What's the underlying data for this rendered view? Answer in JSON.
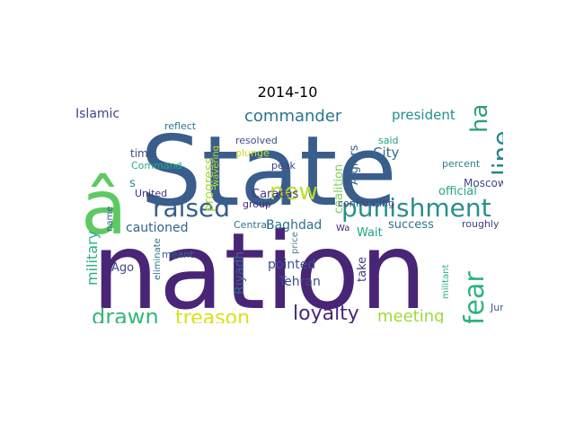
{
  "figure": {
    "title": "2014-10"
  },
  "words": [
    {
      "text": "nation",
      "color": "#482576"
    },
    {
      "text": "State",
      "color": "#3a5e8c"
    },
    {
      "text": "â",
      "color": "#5ec962"
    },
    {
      "text": "new",
      "color": "#b8de29"
    },
    {
      "text": "punishment",
      "color": "#2a8f8b"
    },
    {
      "text": "raised",
      "color": "#34608d"
    },
    {
      "text": "line",
      "color": "#25848e"
    },
    {
      "text": "ha",
      "color": "#2f9e7e"
    },
    {
      "text": "fear",
      "color": "#2db27d"
    },
    {
      "text": "drawn",
      "color": "#35b779"
    },
    {
      "text": "treason",
      "color": "#d8e219"
    },
    {
      "text": "loyalty",
      "color": "#482878"
    },
    {
      "text": "meeting",
      "color": "#9fda3a"
    },
    {
      "text": "commander",
      "color": "#2a768e"
    },
    {
      "text": "president",
      "color": "#21908d"
    },
    {
      "text": "military",
      "color": "#29af7f"
    },
    {
      "text": "Islamic",
      "color": "#414487"
    },
    {
      "text": "cautioned",
      "color": "#33638d"
    },
    {
      "text": "Baghdad",
      "color": "#2d708e"
    },
    {
      "text": "pointed",
      "color": "#3b528b"
    },
    {
      "text": "Tehran",
      "color": "#3e4a89"
    },
    {
      "text": "Riyadh",
      "color": "#31688e"
    },
    {
      "text": "City",
      "color": "#2e6e8e"
    },
    {
      "text": "Moscow",
      "color": "#3f4889"
    },
    {
      "text": "official",
      "color": "#22a884"
    },
    {
      "text": "success",
      "color": "#2c728e"
    },
    {
      "text": "Wait",
      "color": "#20a386"
    },
    {
      "text": "Caracas",
      "color": "#443983"
    },
    {
      "text": "Ago",
      "color": "#404688"
    },
    {
      "text": "progress",
      "color": "#a5db36"
    },
    {
      "text": "time",
      "color": "#3c4f8a"
    },
    {
      "text": "coalition",
      "color": "#7ad151"
    },
    {
      "text": "Algiers",
      "color": "#355f8d"
    },
    {
      "text": "take",
      "color": "#453781"
    },
    {
      "text": "resolved",
      "color": "#3d4e8a"
    },
    {
      "text": "plunge",
      "color": "#c2df23"
    },
    {
      "text": "peak",
      "color": "#424086"
    },
    {
      "text": "reflect",
      "color": "#2a788e"
    },
    {
      "text": "Command",
      "color": "#27ad81"
    },
    {
      "text": "said",
      "color": "#1fa088"
    },
    {
      "text": "percent",
      "color": "#26828e"
    },
    {
      "text": "confronting",
      "color": "#3f4788"
    },
    {
      "text": "United",
      "color": "#46327e"
    },
    {
      "text": "roughly",
      "color": "#433e85"
    },
    {
      "text": "group",
      "color": "#472c7a"
    },
    {
      "text": "Central",
      "color": "#2c738e"
    },
    {
      "text": "Wa",
      "color": "#481f71"
    },
    {
      "text": "price",
      "color": "#4c7e8e"
    },
    {
      "text": "meant",
      "color": "#31688e"
    },
    {
      "text": "militant",
      "color": "#2db27d"
    },
    {
      "text": "partner",
      "color": "#404688"
    },
    {
      "text": "June",
      "color": "#39568c"
    },
    {
      "text": "s",
      "color": "#24868e"
    },
    {
      "text": "wavering",
      "color": "#bddf26"
    },
    {
      "text": "eliminate",
      "color": "#2c728e"
    },
    {
      "text": "name",
      "color": "#355f8d"
    }
  ]
}
